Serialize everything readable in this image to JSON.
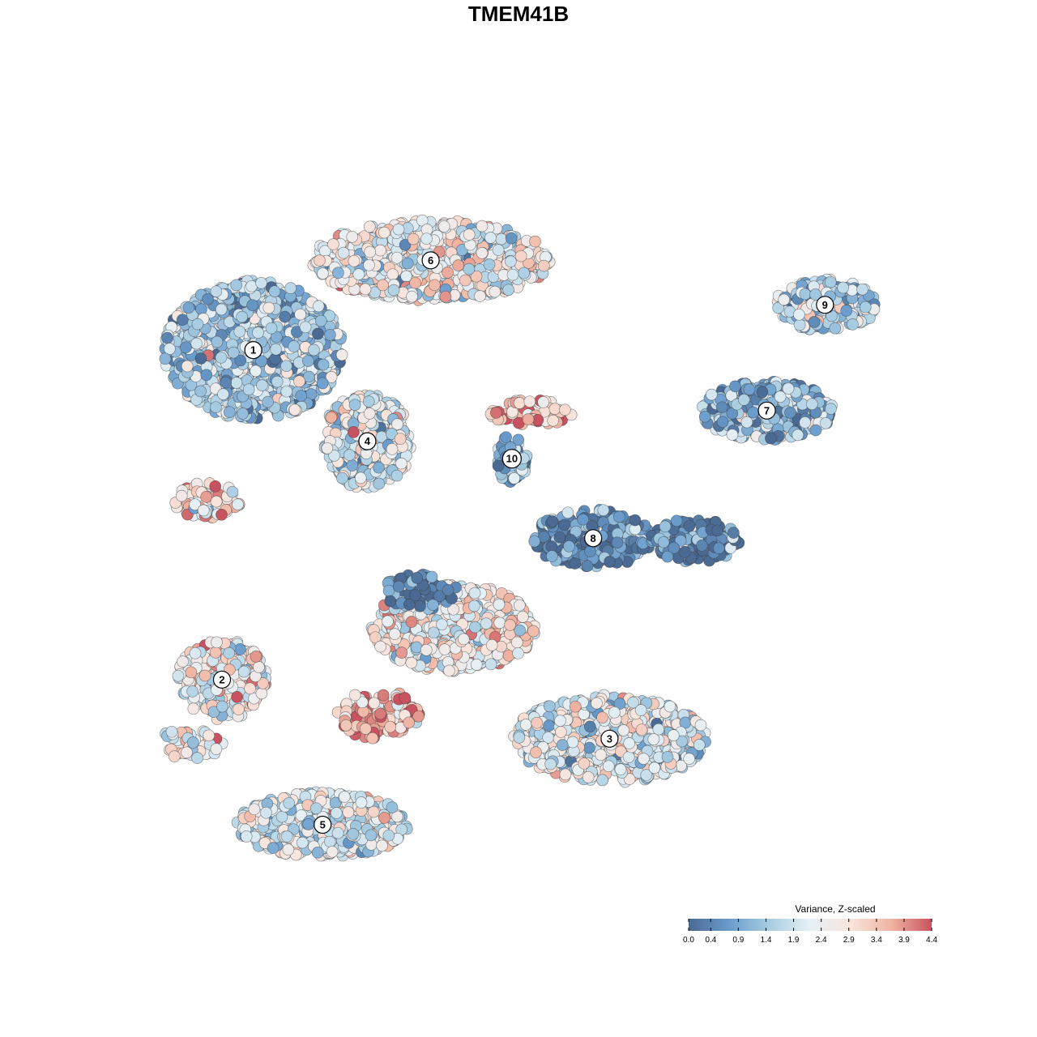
{
  "chart_data": {
    "type": "scatter",
    "title": "TMEM41B",
    "xlabel": "",
    "ylabel": "",
    "grid": false,
    "xlim": [
      0,
      100
    ],
    "ylim": [
      0,
      100
    ],
    "color_scale": {
      "title": "Variance, Z-scaled",
      "min": 0.0,
      "max": 4.4,
      "ticks": [
        "0.0",
        "0.4",
        "0.9",
        "1.4",
        "1.9",
        "2.4",
        "2.9",
        "3.4",
        "3.9",
        "4.4"
      ],
      "colors": [
        "#4a6a93",
        "#6a9ccc",
        "#a8cde2",
        "#e6f0f5",
        "#f9e4dc",
        "#f0b5a2",
        "#c8525f"
      ],
      "legend_position": "bottom-right"
    },
    "clusters": [
      {
        "label": "1",
        "x": 11.7,
        "y": 73.1,
        "mean": 1.5,
        "rx": 12.0,
        "ry": 9.5,
        "n": 950
      },
      {
        "label": "2",
        "x": 7.5,
        "y": 27.9,
        "mean": 2.6,
        "rx": 6.0,
        "ry": 5.5,
        "n": 260
      },
      {
        "label": "3",
        "x": 59.5,
        "y": 19.8,
        "mean": 2.2,
        "rx": 13.0,
        "ry": 6.0,
        "n": 700
      },
      {
        "label": "4",
        "x": 27.0,
        "y": 60.6,
        "mean": 2.1,
        "rx": 6.0,
        "ry": 6.5,
        "n": 320
      },
      {
        "label": "5",
        "x": 21.0,
        "y": 8.0,
        "mean": 2.2,
        "rx": 11.5,
        "ry": 4.5,
        "n": 520
      },
      {
        "label": "6",
        "x": 35.5,
        "y": 85.4,
        "mean": 2.4,
        "rx": 16.0,
        "ry": 5.5,
        "n": 650
      },
      {
        "label": "7",
        "x": 80.6,
        "y": 64.8,
        "mean": 1.2,
        "rx": 9.0,
        "ry": 4.0,
        "n": 330
      },
      {
        "label": "8",
        "x": 57.3,
        "y": 47.3,
        "mean": 0.5,
        "rx": 8.0,
        "ry": 4.0,
        "n": 230
      },
      {
        "label": "9",
        "x": 88.4,
        "y": 79.3,
        "mean": 1.5,
        "rx": 7.0,
        "ry": 3.5,
        "n": 210
      },
      {
        "label": "10",
        "x": 46.4,
        "y": 58.2,
        "mean": 0.9,
        "rx": 2.0,
        "ry": 3.5,
        "n": 70
      },
      {
        "label": "",
        "x": 38.5,
        "y": 35.0,
        "mean": 2.6,
        "rx": 11.0,
        "ry": 6.0,
        "n": 480
      },
      {
        "label": "",
        "x": 49.0,
        "y": 64.5,
        "mean": 3.5,
        "rx": 5.5,
        "ry": 1.8,
        "n": 80
      },
      {
        "label": "",
        "x": 34.0,
        "y": 40.0,
        "mean": 0.4,
        "rx": 5.0,
        "ry": 2.5,
        "n": 80
      },
      {
        "label": "",
        "x": 5.5,
        "y": 52.5,
        "mean": 2.9,
        "rx": 4.5,
        "ry": 2.5,
        "n": 70
      },
      {
        "label": "",
        "x": 28.5,
        "y": 23.0,
        "mean": 3.6,
        "rx": 5.5,
        "ry": 3.5,
        "n": 120
      },
      {
        "label": "",
        "x": 3.0,
        "y": 19.0,
        "mean": 2.6,
        "rx": 5.0,
        "ry": 2.0,
        "n": 45
      },
      {
        "label": "",
        "x": 71.0,
        "y": 47.0,
        "mean": 0.3,
        "rx": 6.0,
        "ry": 3.0,
        "n": 120
      }
    ]
  }
}
